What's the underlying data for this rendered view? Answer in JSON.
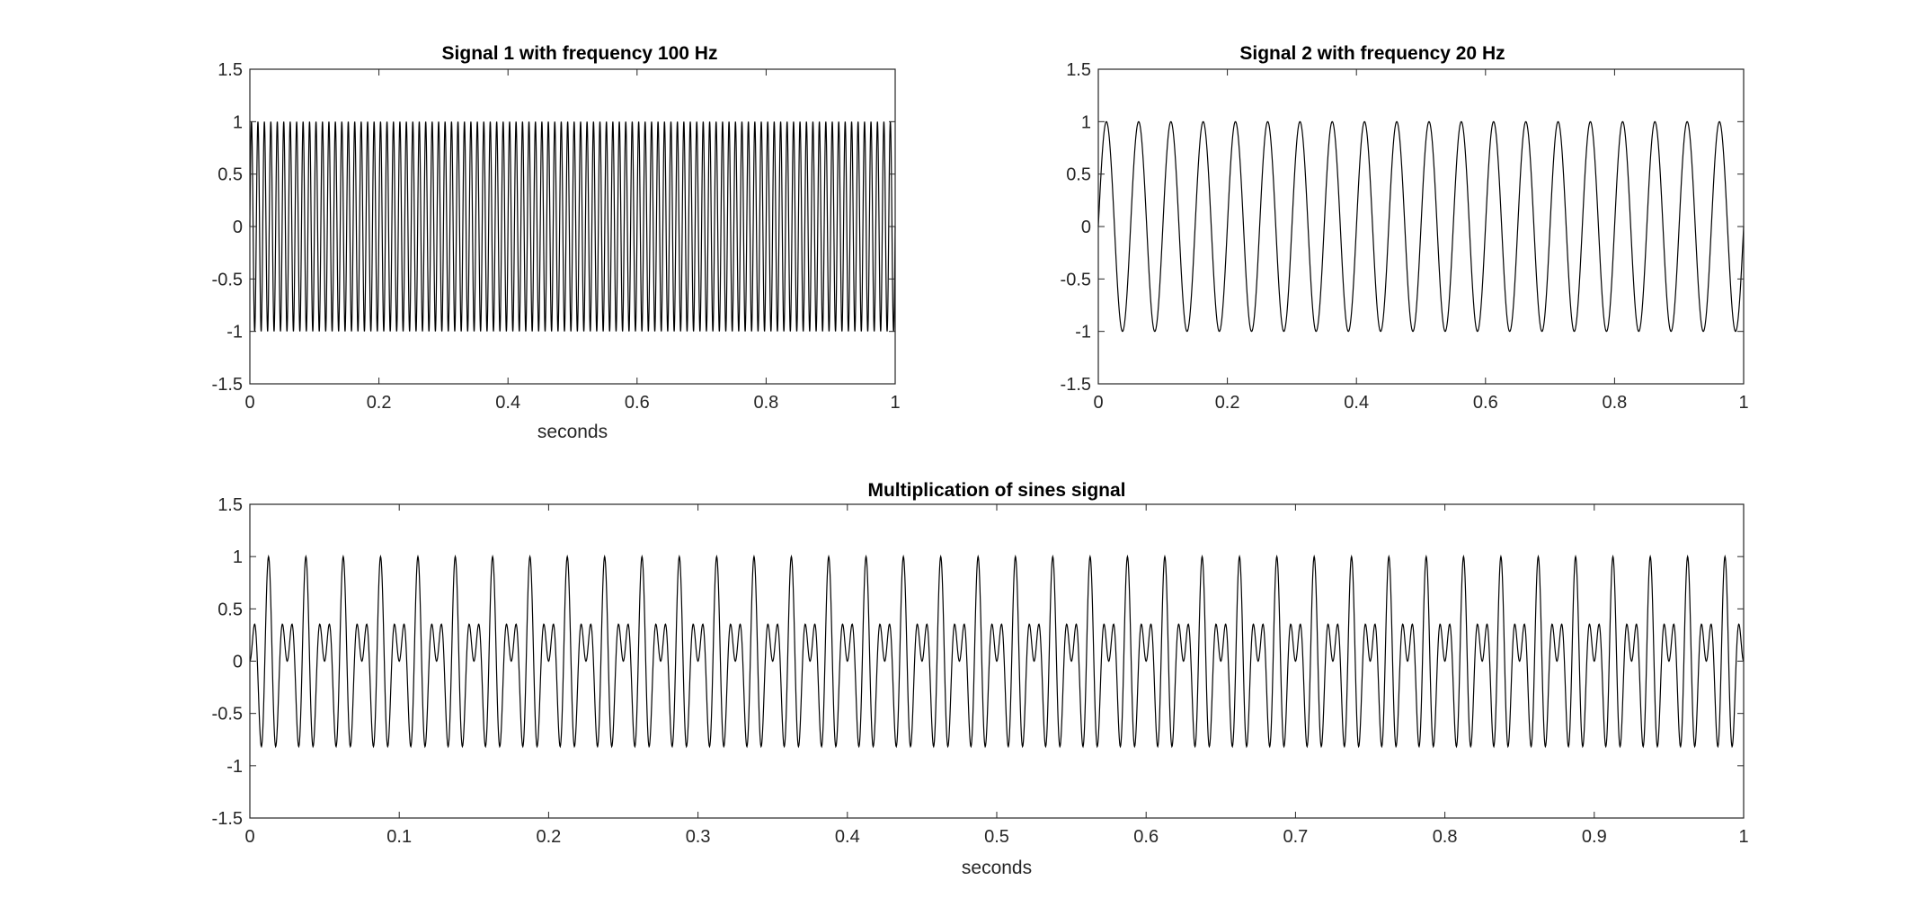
{
  "colors": {
    "background": "#ffffff",
    "axes": "#262626",
    "line": "#000000"
  },
  "chart_data": [
    {
      "type": "line",
      "title": "Signal 1 with frequency 100 Hz",
      "xlabel": "seconds",
      "ylabel": "",
      "xlim": [
        0,
        1
      ],
      "ylim": [
        -1.5,
        1.5
      ],
      "xticks": [
        "0",
        "0.2",
        "0.4",
        "0.6",
        "0.8",
        "1"
      ],
      "yticks": [
        "-1.5",
        "-1",
        "-0.5",
        "0",
        "0.5",
        "1",
        "1.5"
      ],
      "grid": false,
      "series": [
        {
          "function": "sin(2*pi*100*t)",
          "frequency_hz": 100,
          "amplitude": 1,
          "t_start": 0,
          "t_end": 1
        }
      ]
    },
    {
      "type": "line",
      "title": "Signal 2 with frequency 20 Hz",
      "xlabel": "",
      "ylabel": "",
      "xlim": [
        0,
        1
      ],
      "ylim": [
        -1.5,
        1.5
      ],
      "xticks": [
        "0",
        "0.2",
        "0.4",
        "0.6",
        "0.8",
        "1"
      ],
      "yticks": [
        "-1.5",
        "-1",
        "-0.5",
        "0",
        "0.5",
        "1",
        "1.5"
      ],
      "grid": false,
      "series": [
        {
          "function": "sin(2*pi*20*t)",
          "frequency_hz": 20,
          "amplitude": 1,
          "t_start": 0,
          "t_end": 1
        }
      ]
    },
    {
      "type": "line",
      "title": "Multiplication of sines signal",
      "xlabel": "seconds",
      "ylabel": "",
      "xlim": [
        0,
        1
      ],
      "ylim": [
        -1.5,
        1.5
      ],
      "xticks": [
        "0",
        "0.1",
        "0.2",
        "0.3",
        "0.4",
        "0.5",
        "0.6",
        "0.7",
        "0.8",
        "0.9",
        "1"
      ],
      "yticks": [
        "-1.5",
        "-1",
        "-0.5",
        "0",
        "0.5",
        "1",
        "1.5"
      ],
      "grid": false,
      "series": [
        {
          "function": "sin(2*pi*100*t)*sin(2*pi*20*t)",
          "frequencies_hz": [
            100,
            20
          ],
          "t_start": 0,
          "t_end": 1
        }
      ]
    }
  ]
}
